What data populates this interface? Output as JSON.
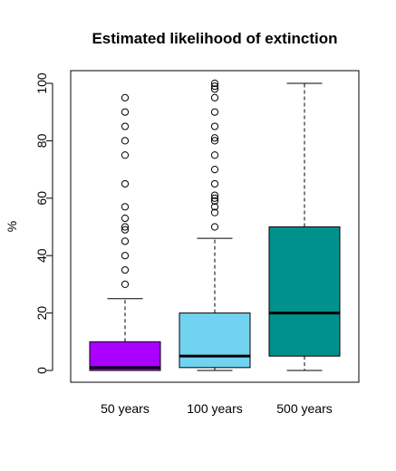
{
  "chart_data": {
    "type": "box",
    "title": "Estimated likelihood of extinction",
    "xlabel": "",
    "ylabel": "%",
    "ylim": [
      0,
      100
    ],
    "y_ticks": [
      0,
      20,
      40,
      60,
      80,
      100
    ],
    "grid": false,
    "legend": "none",
    "categories": [
      "50 years",
      "100 years",
      "500 years"
    ],
    "boxes": [
      {
        "category": "50 years",
        "color": "#AA00FF",
        "whisker_low": 0,
        "q1": 0,
        "median": 1,
        "q3": 10,
        "whisker_high": 25,
        "outliers": [
          30,
          35,
          40,
          45,
          49,
          50,
          53,
          57,
          65,
          75,
          80,
          85,
          90,
          95
        ]
      },
      {
        "category": "100 years",
        "color": "#72D3F0",
        "whisker_low": 0,
        "q1": 1,
        "median": 5,
        "q3": 20,
        "whisker_high": 46,
        "outliers": [
          50,
          55,
          57,
          59,
          60,
          61,
          65,
          70,
          75,
          80,
          81,
          85,
          90,
          95,
          98,
          99,
          100
        ]
      },
      {
        "category": "500 years",
        "color": "#00918C",
        "whisker_low": 0,
        "q1": 5,
        "median": 20,
        "q3": 50,
        "whisker_high": 100,
        "outliers": []
      }
    ]
  }
}
